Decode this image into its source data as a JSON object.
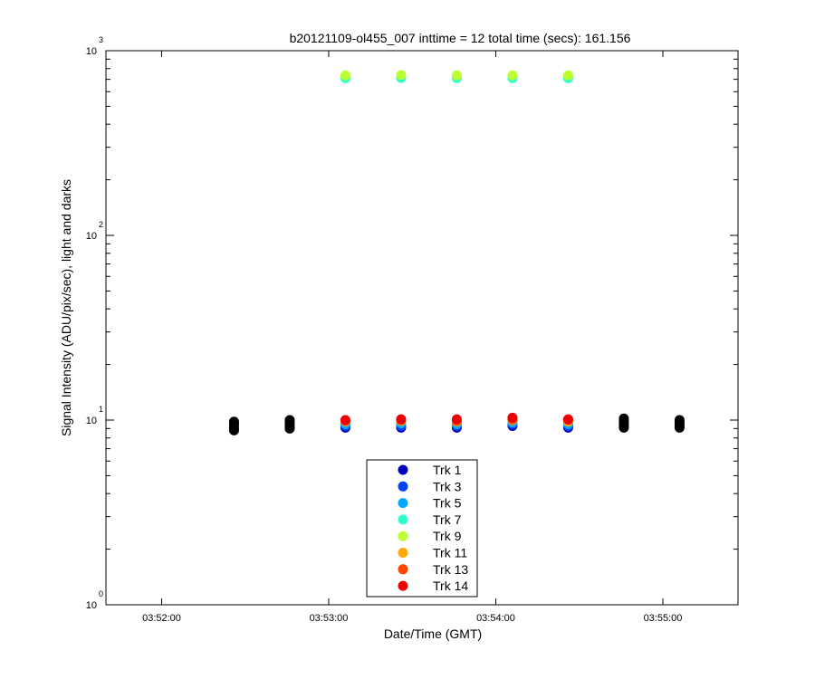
{
  "chart_data": {
    "type": "scatter",
    "title": "b20121109-ol455_007 inttime = 12 total time (secs): 161.156",
    "xlabel": "Date/Time (GMT)",
    "ylabel": "Signal Intensity (ADU/pix/sec), light and darks",
    "x_ticks": [
      "03:52:00",
      "03:53:00",
      "03:54:00",
      "03:55:00"
    ],
    "x_range": [
      "03:51:40",
      "03:55:27"
    ],
    "y_scale": "log",
    "y_ticks": [
      {
        "value": 1,
        "base": "10",
        "exp": "0"
      },
      {
        "value": 10,
        "base": "10",
        "exp": "1"
      },
      {
        "value": 100,
        "base": "10",
        "exp": "2"
      },
      {
        "value": 1000,
        "base": "10",
        "exp": "3"
      }
    ],
    "ylim": [
      1,
      1000
    ],
    "grid": false,
    "legend_position": "bottom-center",
    "series": [
      {
        "name": "Trk 1",
        "color": "#0000bb",
        "points": [
          [
            "03:53:06",
            9.1
          ],
          [
            "03:53:26",
            9.1
          ],
          [
            "03:53:46",
            9.1
          ],
          [
            "03:54:06",
            9.3
          ],
          [
            "03:54:26",
            9.1
          ]
        ]
      },
      {
        "name": "Trk 3",
        "color": "#0044ee",
        "points": [
          [
            "03:53:06",
            9.3
          ],
          [
            "03:53:26",
            9.3
          ],
          [
            "03:53:46",
            9.3
          ],
          [
            "03:54:06",
            9.5
          ],
          [
            "03:54:26",
            9.3
          ]
        ]
      },
      {
        "name": "Trk 5",
        "color": "#00aaff",
        "points": [
          [
            "03:53:06",
            9.5
          ],
          [
            "03:53:26",
            9.6
          ],
          [
            "03:53:46",
            9.5
          ],
          [
            "03:54:06",
            9.7
          ],
          [
            "03:54:26",
            9.5
          ]
        ]
      },
      {
        "name": "Trk 7",
        "color": "#33ffcc",
        "points": [
          [
            "03:53:06",
            710
          ],
          [
            "03:53:26",
            712
          ],
          [
            "03:53:46",
            710
          ],
          [
            "03:54:06",
            710
          ],
          [
            "03:54:26",
            710
          ]
        ]
      },
      {
        "name": "Trk 9",
        "color": "#bbff33",
        "points": [
          [
            "03:53:06",
            735
          ],
          [
            "03:53:26",
            738
          ],
          [
            "03:53:46",
            735
          ],
          [
            "03:54:06",
            735
          ],
          [
            "03:54:26",
            735
          ]
        ]
      },
      {
        "name": "Trk 11",
        "color": "#ffaa00",
        "points": [
          [
            "03:53:06",
            9.8
          ],
          [
            "03:53:26",
            9.9
          ],
          [
            "03:53:46",
            9.8
          ],
          [
            "03:54:06",
            10.0
          ],
          [
            "03:54:26",
            9.8
          ]
        ]
      },
      {
        "name": "Trk 13",
        "color": "#ff4400",
        "points": [
          [
            "03:53:06",
            9.9
          ],
          [
            "03:53:26",
            10.0
          ],
          [
            "03:53:46",
            9.9
          ],
          [
            "03:54:06",
            10.1
          ],
          [
            "03:54:26",
            10.0
          ]
        ]
      },
      {
        "name": "Trk 14",
        "color": "#ee0000",
        "points": [
          [
            "03:53:06",
            10.0
          ],
          [
            "03:53:26",
            10.1
          ],
          [
            "03:53:46",
            10.1
          ],
          [
            "03:54:06",
            10.3
          ],
          [
            "03:54:26",
            10.1
          ]
        ]
      }
    ],
    "dark_frames": {
      "color": "#000000",
      "points": [
        [
          "03:52:26",
          8.8
        ],
        [
          "03:52:26",
          9.0
        ],
        [
          "03:52:26",
          9.3
        ],
        [
          "03:52:26",
          9.6
        ],
        [
          "03:52:26",
          9.8
        ],
        [
          "03:52:46",
          9.0
        ],
        [
          "03:52:46",
          9.2
        ],
        [
          "03:52:46",
          9.5
        ],
        [
          "03:52:46",
          9.8
        ],
        [
          "03:52:46",
          10.0
        ],
        [
          "03:54:46",
          9.1
        ],
        [
          "03:54:46",
          9.3
        ],
        [
          "03:54:46",
          9.6
        ],
        [
          "03:54:46",
          9.9
        ],
        [
          "03:54:46",
          10.2
        ],
        [
          "03:55:06",
          9.1
        ],
        [
          "03:55:06",
          9.3
        ],
        [
          "03:55:06",
          9.5
        ],
        [
          "03:55:06",
          9.8
        ],
        [
          "03:55:06",
          10.0
        ]
      ]
    }
  }
}
